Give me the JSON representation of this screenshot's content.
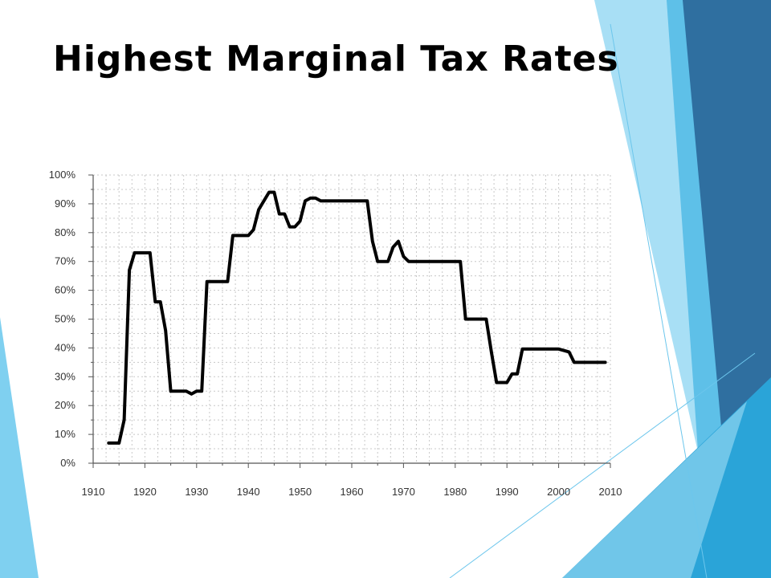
{
  "slide": {
    "title": "Highest Marginal Tax Rates"
  },
  "theme": {
    "accent_light": "#9fdcf6",
    "accent_mid": "#3fa9dc",
    "accent_dark": "#2d6ea1",
    "line_color": "#000000",
    "grid_color": "#c8c8c8"
  },
  "chart_data": {
    "type": "line",
    "title": "",
    "xlabel": "",
    "ylabel": "",
    "xlim": [
      1910,
      2010
    ],
    "ylim": [
      0,
      100
    ],
    "x_ticks": [
      1910,
      1920,
      1930,
      1940,
      1950,
      1960,
      1970,
      1980,
      1990,
      2000,
      2010
    ],
    "y_ticks": [
      0,
      10,
      20,
      30,
      40,
      50,
      60,
      70,
      80,
      90,
      100
    ],
    "x_tick_labels": [
      "1910",
      "1920",
      "1930",
      "1940",
      "1950",
      "1960",
      "1970",
      "1980",
      "1990",
      "2000",
      "2010"
    ],
    "y_tick_labels": [
      "0%",
      "10%",
      "20%",
      "30%",
      "40%",
      "50%",
      "60%",
      "70%",
      "80%",
      "90%",
      "100%"
    ],
    "grid": true,
    "legend": "none",
    "series": [
      {
        "x": [
          1913,
          1915,
          1916,
          1917,
          1918,
          1921,
          1922,
          1923,
          1924,
          1925,
          1928,
          1929,
          1930,
          1931,
          1932,
          1936,
          1937,
          1940,
          1941,
          1942,
          1944,
          1945,
          1946,
          1947,
          1948,
          1949,
          1950,
          1951,
          1952,
          1953,
          1954,
          1963,
          1964,
          1965,
          1967,
          1968,
          1969,
          1970,
          1971,
          1981,
          1982,
          1986,
          1987,
          1988,
          1990,
          1991,
          1992,
          1993,
          2000,
          2001,
          2002,
          2003,
          2009
        ],
        "y": [
          7,
          7,
          15,
          67,
          73,
          73,
          56,
          56,
          46,
          25,
          25,
          24,
          25,
          25,
          63,
          63,
          79,
          79,
          81,
          88,
          94,
          94,
          86.5,
          86.5,
          82,
          82,
          84,
          91,
          92,
          92,
          91,
          91,
          77,
          70,
          70,
          75,
          77,
          71.75,
          70,
          70,
          50,
          50,
          38.5,
          28,
          28,
          31,
          31,
          39.6,
          39.6,
          39.1,
          38.6,
          35,
          35
        ]
      }
    ]
  }
}
